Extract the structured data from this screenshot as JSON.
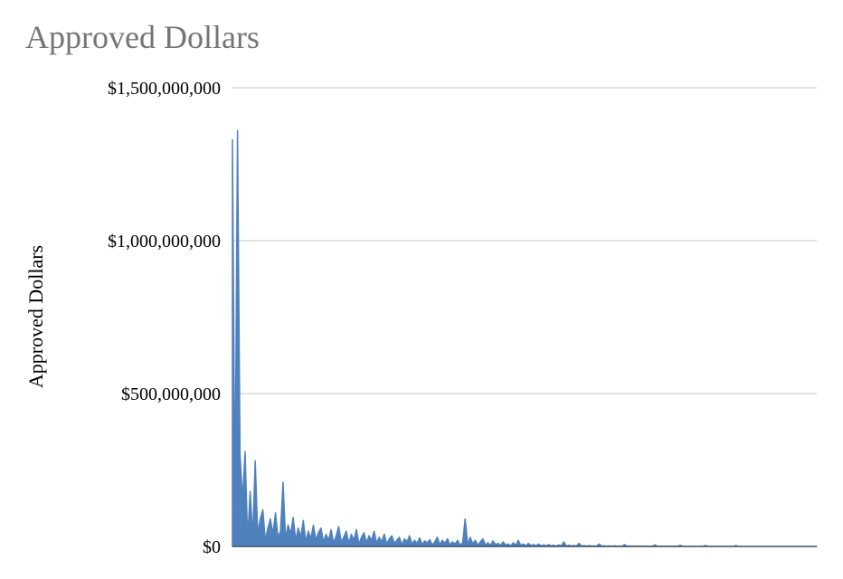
{
  "chart_data": {
    "type": "area",
    "title": "Approved Dollars",
    "xlabel": "",
    "ylabel": "Approved Dollars",
    "ylim": [
      0,
      1500000000
    ],
    "y_ticks": [
      {
        "value": 0,
        "label": "$0"
      },
      {
        "value": 500000000,
        "label": "$500,000,000"
      },
      {
        "value": 1000000000,
        "label": "$1,000,000,000"
      },
      {
        "value": 1500000000,
        "label": "$1,500,000,000"
      }
    ],
    "grid": true,
    "legend": "none",
    "series": [
      {
        "color": "#4f81bd",
        "values": [
          1330000000,
          120000000,
          1360000000,
          300000000,
          150000000,
          310000000,
          20000000,
          180000000,
          30000000,
          280000000,
          40000000,
          90000000,
          120000000,
          20000000,
          60000000,
          90000000,
          40000000,
          110000000,
          30000000,
          50000000,
          210000000,
          25000000,
          70000000,
          40000000,
          95000000,
          20000000,
          60000000,
          30000000,
          85000000,
          15000000,
          50000000,
          25000000,
          70000000,
          20000000,
          45000000,
          60000000,
          15000000,
          40000000,
          20000000,
          55000000,
          10000000,
          35000000,
          65000000,
          15000000,
          30000000,
          50000000,
          10000000,
          40000000,
          20000000,
          55000000,
          8000000,
          30000000,
          45000000,
          12000000,
          35000000,
          20000000,
          50000000,
          10000000,
          30000000,
          15000000,
          40000000,
          8000000,
          25000000,
          35000000,
          10000000,
          20000000,
          30000000,
          5000000,
          25000000,
          15000000,
          35000000,
          8000000,
          20000000,
          10000000,
          28000000,
          6000000,
          18000000,
          12000000,
          22000000,
          5000000,
          15000000,
          30000000,
          6000000,
          20000000,
          10000000,
          25000000,
          5000000,
          15000000,
          8000000,
          20000000,
          4000000,
          12000000,
          90000000,
          5000000,
          30000000,
          8000000,
          20000000,
          4000000,
          15000000,
          25000000,
          5000000,
          12000000,
          3000000,
          18000000,
          6000000,
          10000000,
          3000000,
          15000000,
          5000000,
          8000000,
          2000000,
          12000000,
          4000000,
          20000000,
          3000000,
          8000000,
          2000000,
          10000000,
          3000000,
          6000000,
          2000000,
          8000000,
          2000000,
          5000000,
          1500000,
          6000000,
          2000000,
          4000000,
          1000000,
          5000000,
          2000000,
          15000000,
          1000000,
          4000000,
          1500000,
          3000000,
          1000000,
          10000000,
          1000000,
          3000000,
          800000,
          2500000,
          1000000,
          2000000,
          800000,
          8000000,
          600000,
          2000000,
          800000,
          1500000,
          500000,
          1800000,
          600000,
          1200000,
          500000,
          6000000,
          400000,
          1500000,
          500000,
          1000000,
          400000,
          1200000,
          300000,
          900000,
          350000,
          800000,
          300000,
          5000000,
          300000,
          700000,
          250000,
          600000,
          200000,
          500000,
          250000,
          600000,
          200000,
          4000000,
          180000,
          500000,
          150000,
          400000,
          180000,
          350000,
          150000,
          300000,
          120000,
          3000000,
          120000,
          300000,
          100000,
          250000,
          100000,
          200000,
          90000,
          180000,
          80000,
          150000,
          70000,
          2500000,
          60000,
          120000,
          50000,
          100000,
          40000,
          90000,
          35000,
          80000,
          30000,
          60000,
          25000,
          50000,
          20000,
          45000,
          15000,
          40000,
          12000,
          35000,
          10000,
          30000,
          8000,
          25000,
          6000,
          20000,
          5000,
          15000,
          4000,
          10000,
          3000,
          8000,
          2000,
          5000
        ]
      }
    ]
  }
}
